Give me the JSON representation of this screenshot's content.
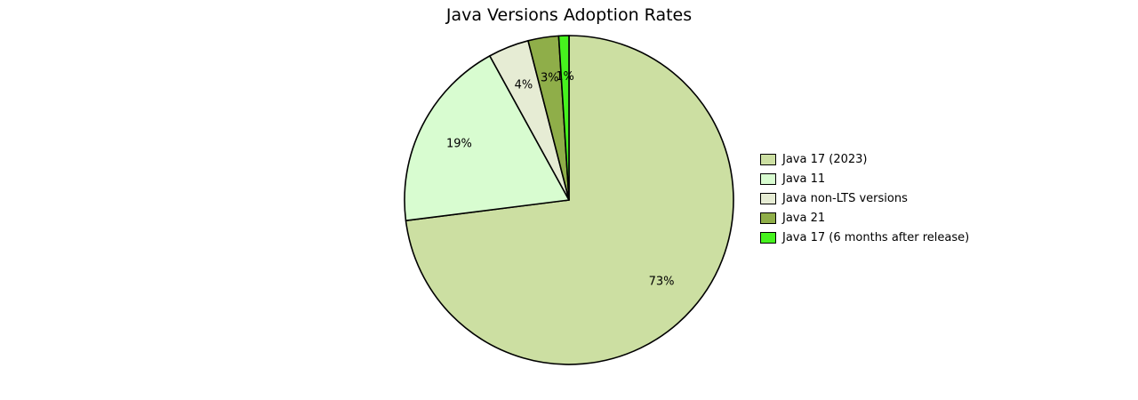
{
  "title": "Java Versions Adoption Rates",
  "chart_data": {
    "type": "pie",
    "title": "Java Versions Adoption Rates",
    "labels": [
      "Java 17 (2023)",
      "Java 11",
      "Java non-LTS versions",
      "Java 21",
      "Java 17 (6 months after release)"
    ],
    "values": [
      73,
      19,
      4,
      3,
      1
    ],
    "percent_labels": [
      "73%",
      "19%",
      "4%",
      "3%",
      "1%"
    ],
    "colors": [
      "#ccdfa2",
      "#d8fcd0",
      "#e6ecd4",
      "#8fae49",
      "#46f21e"
    ],
    "edge_color": "#000000",
    "start_angle_deg": 90,
    "direction": "clockwise",
    "legend_position": "right",
    "label_distance": 0.75
  }
}
